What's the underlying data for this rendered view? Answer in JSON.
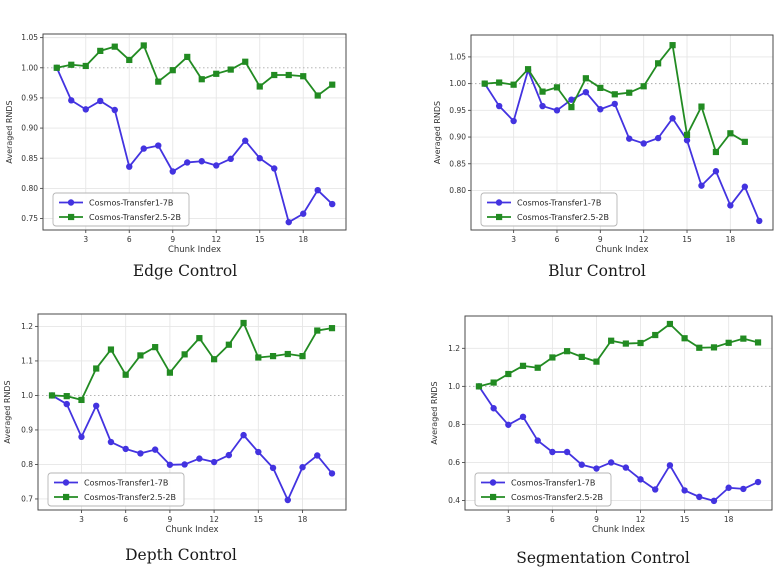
{
  "figure": {
    "background": "#ffffff",
    "text_color": "#333333",
    "spine_color": "#4a4a4a",
    "grid_color": "#e6e6e6",
    "ref_line_color": "#aaaaaa"
  },
  "legend": {
    "items": [
      {
        "label": "Cosmos-Transfer1-7B",
        "marker": "circle",
        "color": "#4333e0"
      },
      {
        "label": "Cosmos-Transfer2.5-2B",
        "marker": "square",
        "color": "#228b22"
      }
    ]
  },
  "chart_data": [
    {
      "type": "line",
      "title": "Edge Control",
      "xlabel": "Chunk Index",
      "ylabel": "Averaged RNDS",
      "xlim": [
        0.05,
        20.95
      ],
      "ylim": [
        0.731,
        1.056
      ],
      "xticks": [
        3,
        6,
        9,
        12,
        15,
        18
      ],
      "yticks": [
        0.75,
        0.8,
        0.85,
        0.9,
        0.95,
        1.0,
        1.05
      ],
      "ytick_labels": [
        "0.75",
        "0.80",
        "0.85",
        "0.90",
        "0.95",
        "1.00",
        "1.05"
      ],
      "ref_line_y": 1.0,
      "grid": true,
      "legend_position": "lower left",
      "series": [
        {
          "name": "Cosmos-Transfer1-7B",
          "marker": "circle",
          "color": "#4333e0",
          "x": [
            1,
            2,
            3,
            4,
            5,
            6,
            7,
            8,
            9,
            10,
            11,
            12,
            13,
            14,
            15,
            16,
            17,
            18,
            19,
            20
          ],
          "values": [
            1.0,
            0.946,
            0.931,
            0.945,
            0.93,
            0.836,
            0.866,
            0.871,
            0.828,
            0.843,
            0.845,
            0.838,
            0.849,
            0.879,
            0.85,
            0.833,
            0.744,
            0.758,
            0.797,
            0.774
          ]
        },
        {
          "name": "Cosmos-Transfer2.5-2B",
          "marker": "square",
          "color": "#228b22",
          "x": [
            1,
            2,
            3,
            4,
            5,
            6,
            7,
            8,
            9,
            10,
            11,
            12,
            13,
            14,
            15,
            16,
            17,
            18,
            19,
            20
          ],
          "values": [
            1.0,
            1.005,
            1.003,
            1.028,
            1.035,
            1.013,
            1.037,
            0.977,
            0.996,
            1.018,
            0.981,
            0.99,
            0.997,
            1.01,
            0.969,
            0.988,
            0.988,
            0.986,
            0.954,
            0.972
          ]
        }
      ]
    },
    {
      "type": "line",
      "title": "Blur Control",
      "xlabel": "Chunk Index",
      "ylabel": "Averaged RNDS",
      "xlim": [
        0.05,
        20.95
      ],
      "ylim": [
        0.726,
        1.091
      ],
      "xticks": [
        3,
        6,
        9,
        12,
        15,
        18
      ],
      "yticks": [
        0.8,
        0.85,
        0.9,
        0.95,
        1.0,
        1.05
      ],
      "ytick_labels": [
        "0.80",
        "0.85",
        "0.90",
        "0.95",
        "1.00",
        "1.05"
      ],
      "ref_line_y": 1.0,
      "grid": true,
      "legend_position": "lower left",
      "series": [
        {
          "name": "Cosmos-Transfer1-7B",
          "marker": "circle",
          "color": "#4333e0",
          "x": [
            1,
            2,
            3,
            4,
            5,
            6,
            7,
            8,
            9,
            10,
            11,
            12,
            13,
            14,
            15,
            16,
            17,
            18,
            19,
            20
          ],
          "values": [
            1.0,
            0.958,
            0.93,
            1.025,
            0.958,
            0.95,
            0.97,
            0.984,
            0.952,
            0.962,
            0.897,
            0.888,
            0.898,
            0.935,
            0.894,
            0.809,
            0.836,
            0.772,
            0.807,
            0.743
          ]
        },
        {
          "name": "Cosmos-Transfer2.5-2B",
          "marker": "square",
          "color": "#228b22",
          "x": [
            1,
            2,
            3,
            4,
            5,
            6,
            7,
            8,
            9,
            10,
            11,
            12,
            13,
            14,
            15,
            16,
            17,
            18,
            19
          ],
          "values": [
            1.0,
            1.002,
            0.998,
            1.027,
            0.985,
            0.993,
            0.956,
            1.01,
            0.992,
            0.98,
            0.983,
            0.995,
            1.038,
            1.072,
            0.904,
            0.957,
            0.872,
            0.907,
            0.891
          ]
        }
      ]
    },
    {
      "type": "line",
      "title": "Depth Control",
      "xlabel": "Chunk Index",
      "ylabel": "Averaged RNDS",
      "xlim": [
        0.05,
        20.95
      ],
      "ylim": [
        0.668,
        1.236
      ],
      "xticks": [
        3,
        6,
        9,
        12,
        15,
        18
      ],
      "yticks": [
        0.7,
        0.8,
        0.9,
        1.0,
        1.1,
        1.2
      ],
      "ytick_labels": [
        "0.7",
        "0.8",
        "0.9",
        "1.0",
        "1.1",
        "1.2"
      ],
      "ref_line_y": 1.0,
      "grid": true,
      "legend_position": "lower left",
      "series": [
        {
          "name": "Cosmos-Transfer1-7B",
          "marker": "circle",
          "color": "#4333e0",
          "x": [
            1,
            2,
            3,
            4,
            5,
            6,
            7,
            8,
            9,
            10,
            11,
            12,
            13,
            14,
            15,
            16,
            17,
            18,
            19,
            20
          ],
          "values": [
            1.0,
            0.975,
            0.88,
            0.97,
            0.865,
            0.845,
            0.832,
            0.843,
            0.799,
            0.8,
            0.817,
            0.807,
            0.827,
            0.885,
            0.836,
            0.79,
            0.697,
            0.792,
            0.826,
            0.774
          ]
        },
        {
          "name": "Cosmos-Transfer2.5-2B",
          "marker": "square",
          "color": "#228b22",
          "x": [
            1,
            2,
            3,
            4,
            5,
            6,
            7,
            8,
            9,
            10,
            11,
            12,
            13,
            14,
            15,
            16,
            17,
            18,
            19,
            20
          ],
          "values": [
            1.0,
            0.998,
            0.987,
            1.078,
            1.133,
            1.06,
            1.116,
            1.14,
            1.066,
            1.119,
            1.166,
            1.105,
            1.147,
            1.21,
            1.11,
            1.114,
            1.12,
            1.114,
            1.188,
            1.195
          ]
        }
      ]
    },
    {
      "type": "line",
      "title": "Segmentation Control",
      "xlabel": "Chunk Index",
      "ylabel": "Averaged RNDS",
      "xlim": [
        0.05,
        20.95
      ],
      "ylim": [
        0.35,
        1.37
      ],
      "xticks": [
        3,
        6,
        9,
        12,
        15,
        18
      ],
      "yticks": [
        0.4,
        0.6,
        0.8,
        1.0,
        1.2
      ],
      "ytick_labels": [
        "0.4",
        "0.6",
        "0.8",
        "1.0",
        "1.2"
      ],
      "ref_line_y": 1.0,
      "grid": true,
      "legend_position": "lower left",
      "series": [
        {
          "name": "Cosmos-Transfer1-7B",
          "marker": "circle",
          "color": "#4333e0",
          "x": [
            1,
            2,
            3,
            4,
            5,
            6,
            7,
            8,
            9,
            10,
            11,
            12,
            13,
            14,
            15,
            16,
            17,
            18,
            19,
            20
          ],
          "values": [
            1.0,
            0.885,
            0.798,
            0.84,
            0.715,
            0.655,
            0.655,
            0.588,
            0.568,
            0.6,
            0.573,
            0.511,
            0.458,
            0.585,
            0.453,
            0.419,
            0.398,
            0.467,
            0.461,
            0.497
          ]
        },
        {
          "name": "Cosmos-Transfer2.5-2B",
          "marker": "square",
          "color": "#228b22",
          "x": [
            1,
            2,
            3,
            4,
            5,
            6,
            7,
            8,
            9,
            10,
            11,
            12,
            13,
            14,
            15,
            16,
            17,
            18,
            19,
            20
          ],
          "values": [
            1.0,
            1.02,
            1.065,
            1.108,
            1.098,
            1.152,
            1.185,
            1.155,
            1.13,
            1.24,
            1.225,
            1.228,
            1.27,
            1.328,
            1.253,
            1.203,
            1.205,
            1.229,
            1.251,
            1.231
          ]
        }
      ]
    }
  ]
}
